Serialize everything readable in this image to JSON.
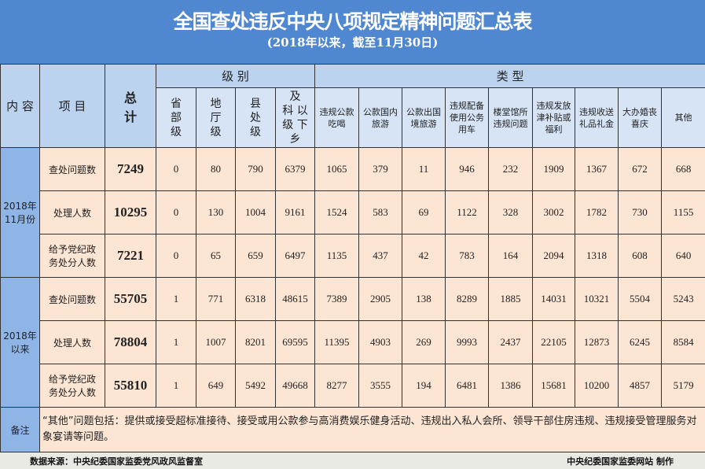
{
  "title": "全国查处违反中央八项规定精神问题汇总表",
  "subtitle": "(2018年以来，截至11月30日)",
  "header": {
    "content": "内 容",
    "item": "项 目",
    "total": "总\n计",
    "level_group": "级  别",
    "type_group": "类  型",
    "levels": [
      "省\n部\n级",
      "地\n厅\n级",
      "县\n处\n级",
      "及\n科 以\n级 下\n乡"
    ],
    "types": [
      "违规公款\n吃喝",
      "公款国内\n旅游",
      "公款出国\n境旅游",
      "违规配备\n使用公务\n用车",
      "楼堂馆所\n违规问题",
      "违规发放\n津补贴或\n福利",
      "违规收送\n礼品礼金",
      "大办婚丧\n喜庆",
      "其他"
    ]
  },
  "groups": [
    {
      "label": "2018年\n11月份",
      "rows": [
        {
          "item": "查处问题数",
          "total": "7249",
          "values": [
            "0",
            "80",
            "790",
            "6379",
            "1065",
            "379",
            "11",
            "946",
            "232",
            "1909",
            "1367",
            "672",
            "668"
          ]
        },
        {
          "item": "处理人数",
          "total": "10295",
          "values": [
            "0",
            "130",
            "1004",
            "9161",
            "1524",
            "583",
            "69",
            "1122",
            "328",
            "3002",
            "1782",
            "730",
            "1155"
          ]
        },
        {
          "item": "给予党纪政\n务处分人数",
          "total": "7221",
          "values": [
            "0",
            "65",
            "659",
            "6497",
            "1135",
            "437",
            "42",
            "783",
            "164",
            "2094",
            "1318",
            "608",
            "640"
          ]
        }
      ]
    },
    {
      "label": "2018年\n以来",
      "rows": [
        {
          "item": "查处问题数",
          "total": "55705",
          "values": [
            "1",
            "771",
            "6318",
            "48615",
            "7389",
            "2905",
            "138",
            "8289",
            "1885",
            "14031",
            "10321",
            "5504",
            "5243"
          ]
        },
        {
          "item": "处理人数",
          "total": "78804",
          "values": [
            "1",
            "1007",
            "8201",
            "69595",
            "11395",
            "4903",
            "269",
            "9993",
            "2437",
            "22105",
            "12873",
            "6245",
            "8584"
          ]
        },
        {
          "item": "给予党纪政\n务处分人数",
          "total": "55810",
          "values": [
            "1",
            "649",
            "5492",
            "49668",
            "8277",
            "3555",
            "194",
            "6481",
            "1386",
            "15681",
            "10200",
            "4857",
            "5179"
          ]
        }
      ]
    }
  ],
  "note": {
    "label": "备注",
    "text": "“其他”问题包括：提供或接受超标准接待、接受或用公款参与高消费娱乐健身活动、违规出入私人会所、领导干部住房违规、违规接受管理服务对象宴请等问题。"
  },
  "footer": {
    "source": "数据来源：中央纪委国家监委党风政风监督室",
    "maker": "中央纪委国家监委网站 制作"
  }
}
